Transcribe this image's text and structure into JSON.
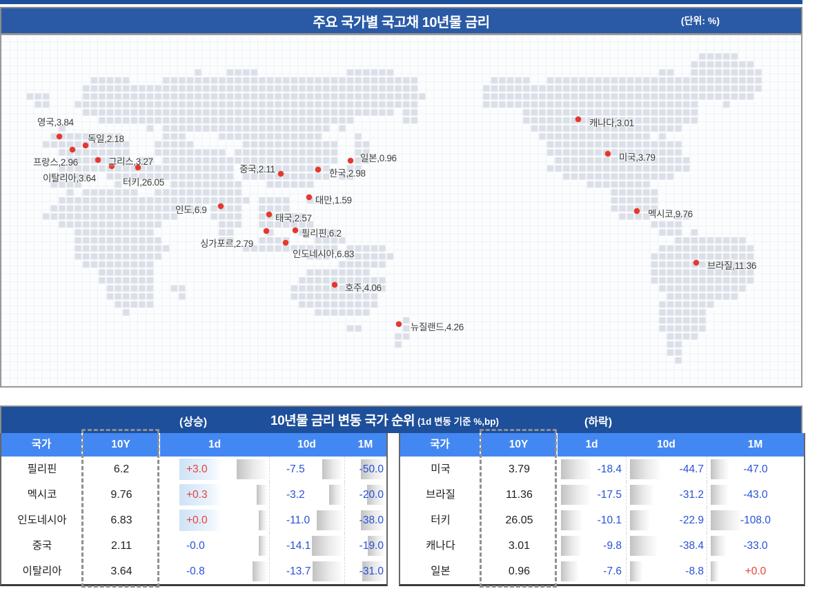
{
  "title_bar": {
    "title": "주요 국가별 국고채 10년물 금리",
    "unit": "(단위:  %)"
  },
  "rank_header": {
    "rising": "(상승)",
    "title": "10년물 금리 변동 국가 순위",
    "subtitle": "(1d 변동 기준 %,bp)",
    "falling": "(하락)"
  },
  "columns": [
    "국가",
    "10Y",
    "1d",
    "10d",
    "1M"
  ],
  "colors": {
    "top_strip_navy": "#1d4f9a",
    "title_bar_blue": "#2a5aa6",
    "band_navy": "#1d4f9a",
    "header_blue": "#4387f2",
    "positive_red": "#e2423a",
    "negative_blue": "#2750d8",
    "dot_red": "#e8362c",
    "land_gray": "#dbe0e8"
  },
  "chart_data": [
    {
      "type": "scatter",
      "subtype": "pixel-world-map",
      "title": "주요 국가별 국고채 10년물 금리",
      "unit": "%",
      "points": [
        {
          "key": "uk",
          "name": "영국",
          "value": 3.84,
          "label": "영국,3.84",
          "dot": [
            84,
            147
          ],
          "text": [
            52,
            115
          ]
        },
        {
          "key": "germany",
          "name": "독일",
          "value": 2.18,
          "label": "독일,2.18",
          "dot": [
            122,
            160
          ],
          "text": [
            125,
            139
          ]
        },
        {
          "key": "france",
          "name": "프랑스",
          "value": 2.96,
          "label": "프랑스,2.96",
          "dot": [
            103,
            166
          ],
          "text": [
            46,
            173
          ]
        },
        {
          "key": "italy",
          "name": "이탈리아",
          "value": 3.64,
          "label": "이탈리아,3.64",
          "dot": [
            140,
            181
          ],
          "text": [
            60,
            196
          ]
        },
        {
          "key": "greece",
          "name": "그리스",
          "value": 3.27,
          "label": "그리스,3.27",
          "dot": [
            160,
            190
          ],
          "text": [
            155,
            172
          ]
        },
        {
          "key": "turkey",
          "name": "터키",
          "value": 26.05,
          "label": "터키,26.05",
          "dot": [
            198,
            192
          ],
          "text": [
            176,
            202
          ]
        },
        {
          "key": "china",
          "name": "중국",
          "value": 2.11,
          "label": "중국,2.11",
          "dot": [
            405,
            201
          ],
          "text": [
            345,
            183
          ]
        },
        {
          "key": "japan",
          "name": "일본",
          "value": 0.96,
          "label": "일본,0.96",
          "dot": [
            506,
            182
          ],
          "text": [
            520,
            167
          ]
        },
        {
          "key": "korea",
          "name": "한국",
          "value": 2.98,
          "label": "한국,2.98",
          "dot": [
            459,
            195
          ],
          "text": [
            475,
            189
          ]
        },
        {
          "key": "taiwan",
          "name": "대만",
          "value": 1.59,
          "label": "대만,1.59",
          "dot": [
            446,
            235
          ],
          "text": [
            455,
            228
          ]
        },
        {
          "key": "india",
          "name": "인도",
          "value": 6.9,
          "label": "인도,6.9",
          "dot": [
            318,
            248
          ],
          "text": [
            252,
            242
          ]
        },
        {
          "key": "thailand",
          "name": "태국",
          "value": 2.57,
          "label": "태국,2.57",
          "dot": [
            388,
            260
          ],
          "text": [
            397,
            254
          ]
        },
        {
          "key": "philippines",
          "name": "필리핀",
          "value": 6.2,
          "label": "필리핀,6.2",
          "dot": [
            426,
            283
          ],
          "text": [
            435,
            276
          ]
        },
        {
          "key": "singapore",
          "name": "싱가포르",
          "value": 2.79,
          "label": "싱가포르,2.79",
          "dot": [
            384,
            284
          ],
          "text": [
            288,
            291
          ]
        },
        {
          "key": "indonesia",
          "name": "인도네시아",
          "value": 6.83,
          "label": "인도네시아,6.83",
          "dot": [
            412,
            301
          ],
          "text": [
            422,
            306
          ]
        },
        {
          "key": "australia",
          "name": "호주",
          "value": 4.06,
          "label": "호주,4.06",
          "dot": [
            483,
            362
          ],
          "text": [
            498,
            355
          ]
        },
        {
          "key": "new-zealand",
          "name": "뉴질랜드",
          "value": 4.26,
          "label": "뉴질랜드,4.26",
          "dot": [
            576,
            419
          ],
          "text": [
            593,
            412
          ]
        },
        {
          "key": "canada",
          "name": "캐나다",
          "value": 3.01,
          "label": "캐나다,3.01",
          "dot": [
            836,
            122
          ],
          "text": [
            852,
            116
          ]
        },
        {
          "key": "usa",
          "name": "미국",
          "value": 3.79,
          "label": "미국,3.79",
          "dot": [
            879,
            172
          ],
          "text": [
            895,
            166
          ]
        },
        {
          "key": "mexico",
          "name": "멕시코",
          "value": 9.76,
          "label": "멕시코,9.76",
          "dot": [
            921,
            255
          ],
          "text": [
            937,
            248
          ]
        },
        {
          "key": "brazil",
          "name": "브라질",
          "value": 11.36,
          "label": "브라질,11.36",
          "dot": [
            1007,
            330
          ],
          "text": [
            1023,
            323
          ]
        }
      ]
    },
    {
      "type": "table",
      "name": "rising",
      "label": "(상승)",
      "columns": [
        "국가",
        "10Y",
        "1d",
        "10d",
        "1M"
      ],
      "rows": [
        {
          "key": "philippines",
          "country": "필리핀",
          "y10": "6.2",
          "changes": [
            "+3.0",
            "-7.5",
            "-50.0"
          ]
        },
        {
          "key": "mexico",
          "country": "멕시코",
          "y10": "9.76",
          "changes": [
            "+0.3",
            "-3.2",
            "-20.0"
          ]
        },
        {
          "key": "indonesia",
          "country": "인도네시아",
          "y10": "6.83",
          "changes": [
            "+0.0",
            "-11.0",
            "-38.0"
          ]
        },
        {
          "key": "china",
          "country": "중국",
          "y10": "2.11",
          "changes": [
            "-0.0",
            "-14.1",
            "-19.0"
          ]
        },
        {
          "key": "italy",
          "country": "이탈리아",
          "y10": "3.64",
          "changes": [
            "-0.8",
            "-13.7",
            "-31.0"
          ]
        }
      ]
    },
    {
      "type": "table",
      "name": "falling",
      "label": "(하락)",
      "columns": [
        "국가",
        "10Y",
        "1d",
        "10d",
        "1M"
      ],
      "rows": [
        {
          "key": "usa",
          "country": "미국",
          "y10": "3.79",
          "changes": [
            "-18.4",
            "-44.7",
            "-47.0"
          ]
        },
        {
          "key": "brazil",
          "country": "브라질",
          "y10": "11.36",
          "changes": [
            "-17.5",
            "-31.2",
            "-43.0"
          ]
        },
        {
          "key": "turkey",
          "country": "터키",
          "y10": "26.05",
          "changes": [
            "-10.1",
            "-22.9",
            "-108.0"
          ]
        },
        {
          "key": "canada",
          "country": "캐나다",
          "y10": "3.01",
          "changes": [
            "-9.8",
            "-38.4",
            "-33.0"
          ]
        },
        {
          "key": "japan",
          "country": "일본",
          "y10": "0.96",
          "changes": [
            "-7.6",
            "-8.8",
            "+0.0"
          ]
        }
      ]
    }
  ]
}
